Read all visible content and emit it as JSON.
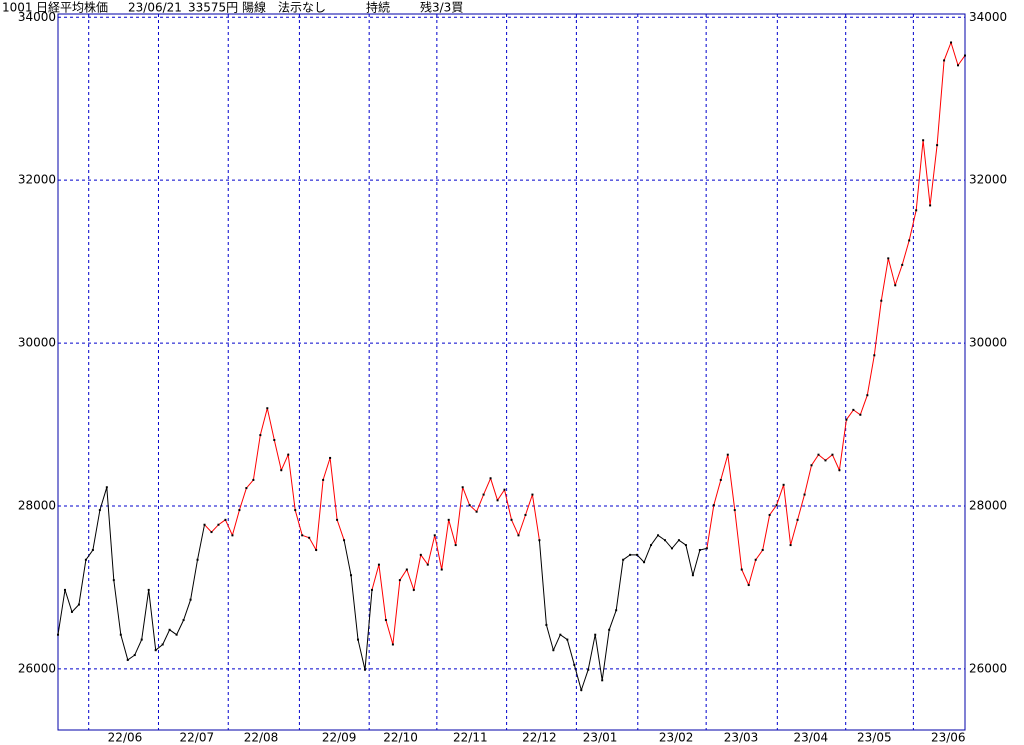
{
  "chart_data": {
    "type": "line",
    "header": {
      "code": "1001",
      "name": "日経平均株価",
      "date": "23/06/21",
      "price": "33575円",
      "candle": "陽線",
      "signal": "法示なし",
      "status": "持続",
      "position": "残3/3買"
    },
    "values": [
      26420,
      26970,
      26700,
      26790,
      27340,
      27460,
      27950,
      28230,
      27090,
      26420,
      26110,
      26170,
      26360,
      26970,
      26230,
      26300,
      26480,
      26420,
      26600,
      26850,
      27340,
      27770,
      27680,
      27770,
      27830,
      27640,
      27950,
      28220,
      28320,
      28870,
      29200,
      28810,
      28440,
      28630,
      27950,
      27640,
      27610,
      27460,
      28320,
      28590,
      27830,
      27580,
      27150,
      26360,
      25990,
      26970,
      27280,
      26600,
      26300,
      27090,
      27220,
      26970,
      27400,
      27280,
      27640,
      27220,
      27830,
      27520,
      28230,
      28010,
      27930,
      28140,
      28340,
      28070,
      28200,
      27830,
      27640,
      27890,
      28140,
      27580,
      26540,
      26230,
      26420,
      26360,
      26050,
      25740,
      25990,
      26420,
      25860,
      26480,
      26720,
      27340,
      27400,
      27400,
      27310,
      27520,
      27640,
      27580,
      27480,
      27580,
      27520,
      27150,
      27460,
      27480,
      28010,
      28320,
      28630,
      27950,
      27220,
      27030,
      27340,
      27460,
      27890,
      28010,
      28260,
      27520,
      27830,
      28140,
      28500,
      28630,
      28560,
      28630,
      28440,
      29060,
      29180,
      29120,
      29360,
      29850,
      30520,
      31040,
      30710,
      30960,
      31260,
      31630,
      32490,
      31690,
      32430,
      33470,
      33690,
      33410,
      33530
    ],
    "line_colors": [
      {
        "from": 0,
        "to": 21,
        "color": "#000000"
      },
      {
        "from": 21,
        "to": 41,
        "color": "#ff0000"
      },
      {
        "from": 41,
        "to": 45,
        "color": "#000000"
      },
      {
        "from": 45,
        "to": 69,
        "color": "#ff0000"
      },
      {
        "from": 69,
        "to": 93,
        "color": "#000000"
      },
      {
        "from": 93,
        "to": 130,
        "color": "#ff0000"
      }
    ],
    "xlim": [
      0,
      130
    ],
    "xticks": [
      {
        "value": 9.6,
        "label": "22/06"
      },
      {
        "value": 19.9,
        "label": "22/07"
      },
      {
        "value": 29.1,
        "label": "22/08"
      },
      {
        "value": 40.3,
        "label": "22/09"
      },
      {
        "value": 49.1,
        "label": "22/10"
      },
      {
        "value": 59.1,
        "label": "22/11"
      },
      {
        "value": 69,
        "label": "22/12"
      },
      {
        "value": 77.7,
        "label": "23/01"
      },
      {
        "value": 88.6,
        "label": "23/02"
      },
      {
        "value": 97.9,
        "label": "23/03"
      },
      {
        "value": 107.9,
        "label": "23/04"
      },
      {
        "value": 117,
        "label": "23/05"
      },
      {
        "value": 127.6,
        "label": "23/06"
      }
    ],
    "xgrid": [
      4.4,
      14.4,
      24.4,
      34.6,
      44.6,
      54.3,
      64.3,
      74.3,
      83.1,
      92.9,
      103.1,
      112.9,
      122.6
    ],
    "ylim": [
      25250,
      34040
    ],
    "yticks": [
      26000,
      28000,
      30000,
      32000,
      34000
    ],
    "grid": true,
    "frame_color": "#0000aa"
  }
}
